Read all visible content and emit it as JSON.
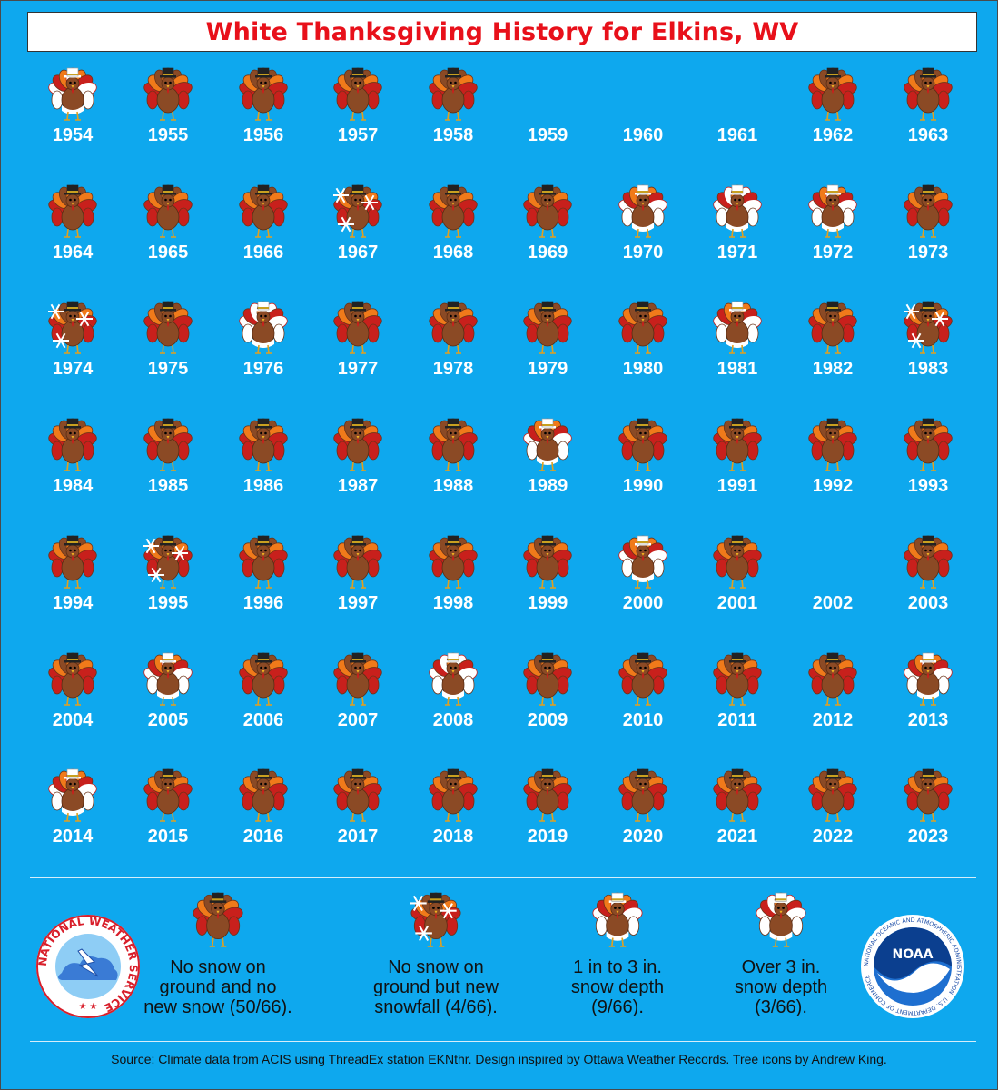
{
  "title": "White Thanksgiving History for Elkins, WV",
  "chart_data": {
    "type": "table",
    "categories": [
      "none",
      "snowfall",
      "1to3",
      "over3"
    ],
    "years": [
      {
        "year": "1954",
        "cat": "1to3"
      },
      {
        "year": "1955",
        "cat": "none"
      },
      {
        "year": "1956",
        "cat": "none"
      },
      {
        "year": "1957",
        "cat": "none"
      },
      {
        "year": "1958",
        "cat": "none"
      },
      {
        "year": "1959",
        "cat": "missing"
      },
      {
        "year": "1960",
        "cat": "missing"
      },
      {
        "year": "1961",
        "cat": "missing"
      },
      {
        "year": "1962",
        "cat": "none"
      },
      {
        "year": "1963",
        "cat": "none"
      },
      {
        "year": "1964",
        "cat": "none"
      },
      {
        "year": "1965",
        "cat": "none"
      },
      {
        "year": "1966",
        "cat": "none"
      },
      {
        "year": "1967",
        "cat": "snowfall"
      },
      {
        "year": "1968",
        "cat": "none"
      },
      {
        "year": "1969",
        "cat": "none"
      },
      {
        "year": "1970",
        "cat": "1to3"
      },
      {
        "year": "1971",
        "cat": "over3"
      },
      {
        "year": "1972",
        "cat": "1to3"
      },
      {
        "year": "1973",
        "cat": "none"
      },
      {
        "year": "1974",
        "cat": "snowfall"
      },
      {
        "year": "1975",
        "cat": "none"
      },
      {
        "year": "1976",
        "cat": "over3"
      },
      {
        "year": "1977",
        "cat": "none"
      },
      {
        "year": "1978",
        "cat": "none"
      },
      {
        "year": "1979",
        "cat": "none"
      },
      {
        "year": "1980",
        "cat": "none"
      },
      {
        "year": "1981",
        "cat": "1to3"
      },
      {
        "year": "1982",
        "cat": "none"
      },
      {
        "year": "1983",
        "cat": "snowfall"
      },
      {
        "year": "1984",
        "cat": "none"
      },
      {
        "year": "1985",
        "cat": "none"
      },
      {
        "year": "1986",
        "cat": "none"
      },
      {
        "year": "1987",
        "cat": "none"
      },
      {
        "year": "1988",
        "cat": "none"
      },
      {
        "year": "1989",
        "cat": "1to3"
      },
      {
        "year": "1990",
        "cat": "none"
      },
      {
        "year": "1991",
        "cat": "none"
      },
      {
        "year": "1992",
        "cat": "none"
      },
      {
        "year": "1993",
        "cat": "none"
      },
      {
        "year": "1994",
        "cat": "none"
      },
      {
        "year": "1995",
        "cat": "snowfall"
      },
      {
        "year": "1996",
        "cat": "none"
      },
      {
        "year": "1997",
        "cat": "none"
      },
      {
        "year": "1998",
        "cat": "none"
      },
      {
        "year": "1999",
        "cat": "none"
      },
      {
        "year": "2000",
        "cat": "1to3"
      },
      {
        "year": "2001",
        "cat": "none"
      },
      {
        "year": "2002",
        "cat": "missing"
      },
      {
        "year": "2003",
        "cat": "none"
      },
      {
        "year": "2004",
        "cat": "none"
      },
      {
        "year": "2005",
        "cat": "1to3"
      },
      {
        "year": "2006",
        "cat": "none"
      },
      {
        "year": "2007",
        "cat": "none"
      },
      {
        "year": "2008",
        "cat": "over3"
      },
      {
        "year": "2009",
        "cat": "none"
      },
      {
        "year": "2010",
        "cat": "none"
      },
      {
        "year": "2011",
        "cat": "none"
      },
      {
        "year": "2012",
        "cat": "none"
      },
      {
        "year": "2013",
        "cat": "1to3"
      },
      {
        "year": "2014",
        "cat": "1to3"
      },
      {
        "year": "2015",
        "cat": "none"
      },
      {
        "year": "2016",
        "cat": "none"
      },
      {
        "year": "2017",
        "cat": "none"
      },
      {
        "year": "2018",
        "cat": "none"
      },
      {
        "year": "2019",
        "cat": "none"
      },
      {
        "year": "2020",
        "cat": "none"
      },
      {
        "year": "2021",
        "cat": "none"
      },
      {
        "year": "2022",
        "cat": "none"
      },
      {
        "year": "2023",
        "cat": "none"
      }
    ]
  },
  "legend": [
    {
      "cat": "none",
      "lines": [
        "No snow on",
        "ground and no",
        "new snow (50/66)."
      ]
    },
    {
      "cat": "snowfall",
      "lines": [
        "No snow on",
        "ground but new",
        "snowfall (4/66)."
      ]
    },
    {
      "cat": "1to3",
      "lines": [
        "1 in to 3 in.",
        "snow depth",
        "(9/66)."
      ]
    },
    {
      "cat": "over3",
      "lines": [
        "Over 3 in.",
        "snow depth",
        "(3/66)."
      ]
    }
  ],
  "logos": {
    "nws": "NATIONAL WEATHER SERVICE",
    "noaa": "NOAA",
    "noaa_ring": "NATIONAL OCEANIC AND ATMOSPHERIC ADMINISTRATION · U.S. DEPARTMENT OF COMMERCE"
  },
  "source": "Source: Climate data from ACIS using ThreadEx station EKNthr. Design inspired by Ottawa Weather Records. Tree icons by Andrew King.",
  "colors": {
    "background": "#0ea8ee",
    "title": "#e8101a",
    "turkey_body": "#8b4a25",
    "feather_red": "#c8201c",
    "feather_orange": "#f07a1a",
    "snow": "#ffffff"
  }
}
